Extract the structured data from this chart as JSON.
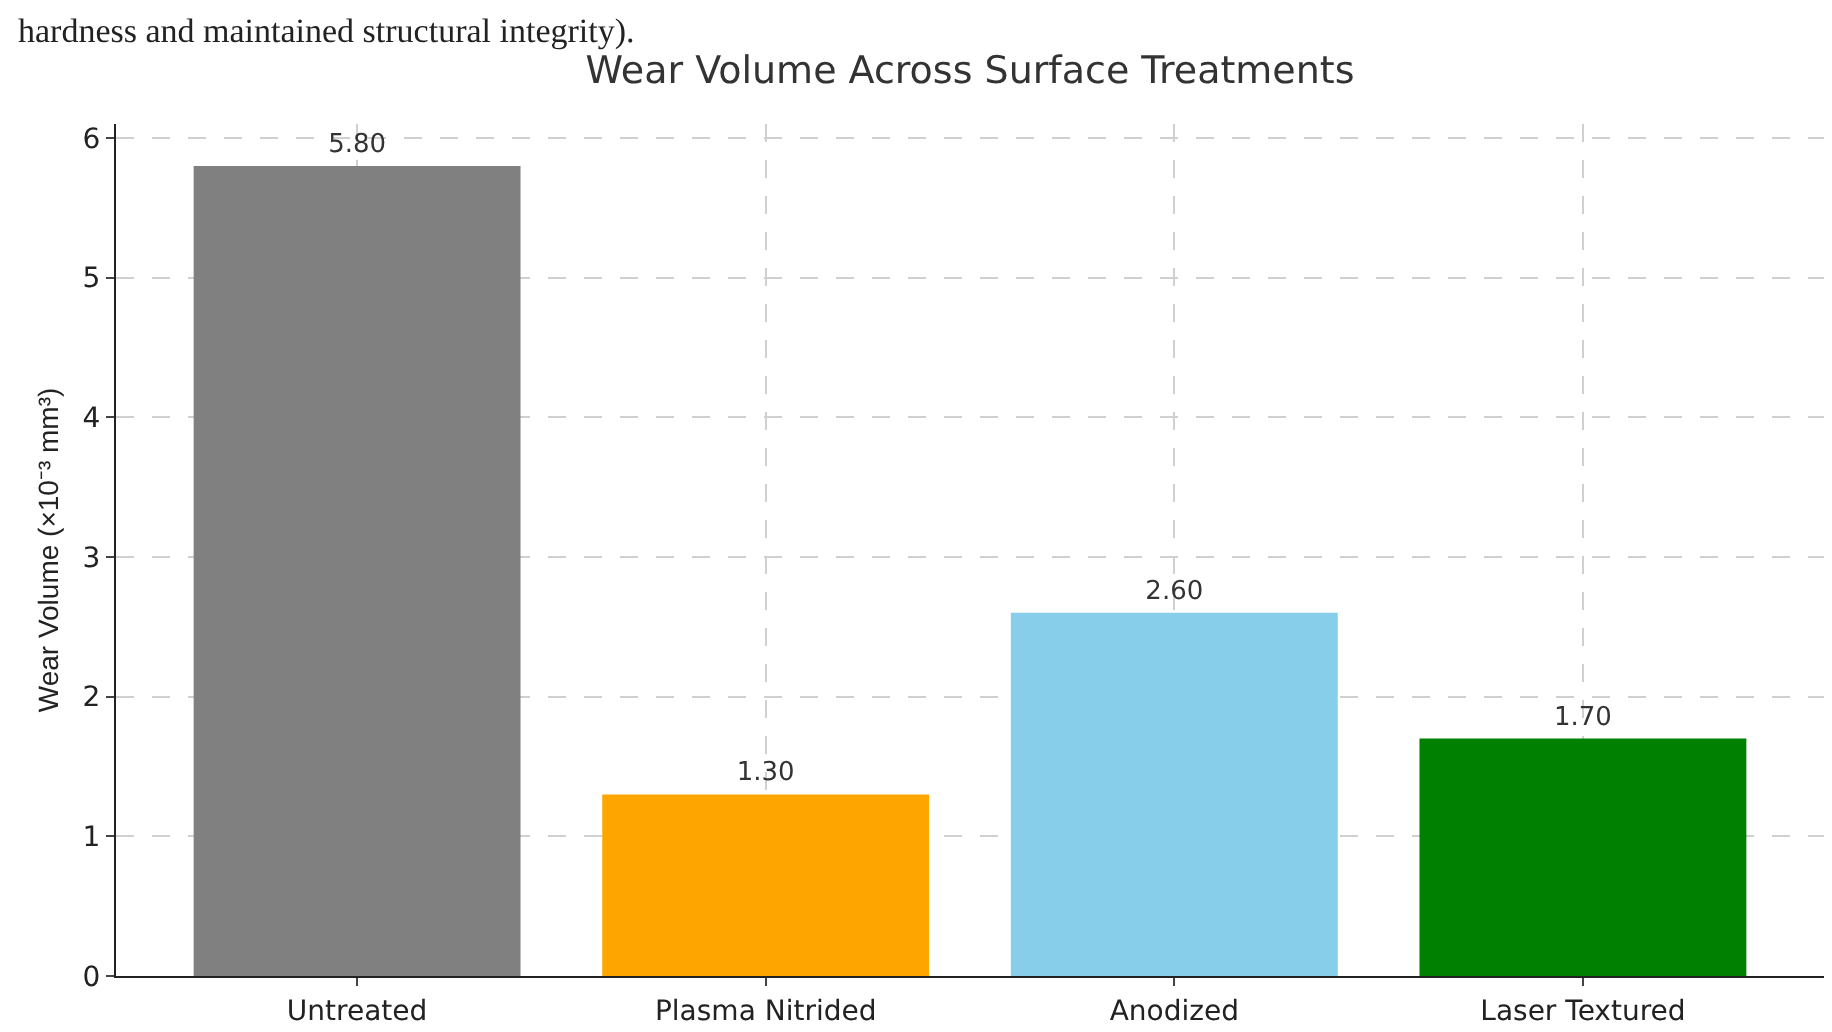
{
  "chart_data": {
    "type": "bar",
    "title": "Wear Volume Across Surface Treatments",
    "ylabel": "Wear Volume (×10⁻³ mm³)",
    "categories": [
      "Untreated",
      "Plasma Nitrided",
      "Anodized",
      "Laser Textured"
    ],
    "values": [
      5.8,
      1.3,
      2.6,
      1.7
    ],
    "colors": [
      "#808080",
      "#ffa500",
      "#87ceeb",
      "#008000"
    ],
    "value_labels": [
      "5.80",
      "1.30",
      "2.60",
      "1.70"
    ],
    "ylim": [
      0,
      6.1
    ],
    "yticks": [
      0,
      1,
      2,
      3,
      4,
      5,
      6
    ],
    "grid": true,
    "annotations": [
      "hardness and maintained structural integrity)."
    ]
  }
}
